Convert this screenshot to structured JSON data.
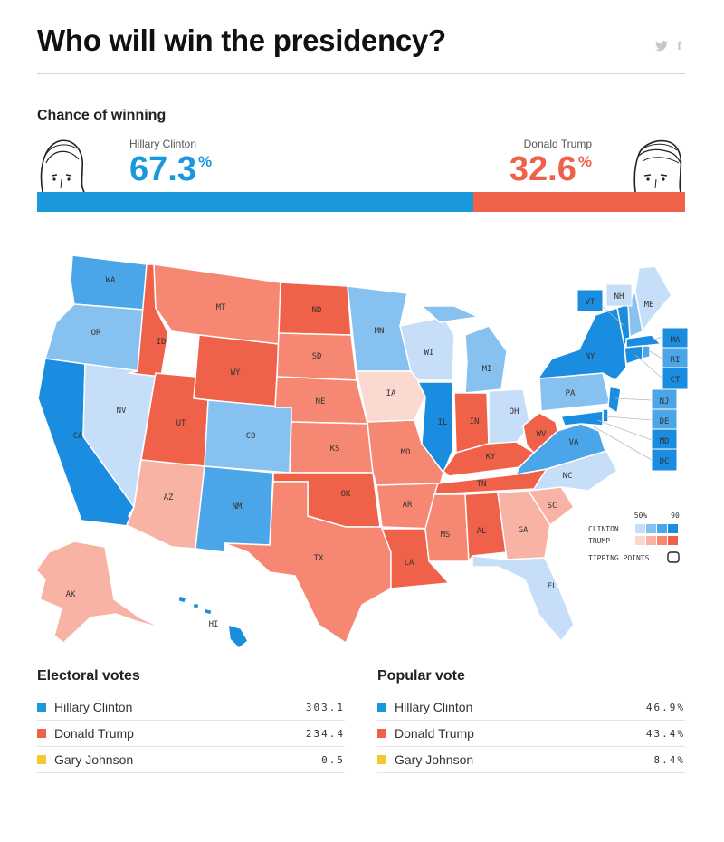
{
  "header": {
    "title": "Who will win the presidency?",
    "share_twitter": "twitter-icon",
    "share_facebook": "f"
  },
  "chance": {
    "heading": "Chance of winning",
    "clinton": {
      "name": "Hillary Clinton",
      "pct": "67.3",
      "unit": "%",
      "value": 67.3,
      "color": "#1a98dc"
    },
    "trump": {
      "name": "Donald Trump",
      "pct": "32.6",
      "unit": "%",
      "value": 32.6,
      "color": "#ef6148"
    }
  },
  "map": {
    "states": {
      "WA": "WA",
      "OR": "OR",
      "CA": "CA",
      "NV": "NV",
      "ID": "ID",
      "MT": "MT",
      "WY": "WY",
      "UT": "UT",
      "AZ": "AZ",
      "CO": "CO",
      "NM": "NM",
      "ND": "ND",
      "SD": "SD",
      "NE": "NE",
      "KS": "KS",
      "OK": "OK",
      "TX": "TX",
      "MN": "MN",
      "IA": "IA",
      "MO": "MO",
      "AR": "AR",
      "LA": "LA",
      "WI": "WI",
      "IL": "IL",
      "MI": "MI",
      "IN": "IN",
      "OH": "OH",
      "KY": "KY",
      "TN": "TN",
      "MS": "MS",
      "AL": "AL",
      "GA": "GA",
      "FL": "FL",
      "SC": "SC",
      "NC": "NC",
      "VA": "VA",
      "WV": "WV",
      "PA": "PA",
      "NY": "NY",
      "ME": "ME",
      "AK": "AK",
      "HI": "HI"
    },
    "small_states": {
      "VT": "VT",
      "NH": "NH",
      "MA": "MA",
      "RI": "RI",
      "CT": "CT",
      "NJ": "NJ",
      "DE": "DE",
      "MD": "MD",
      "DC": "DC"
    },
    "legend": {
      "p50": "50%",
      "p90": "90",
      "clinton": "CLINTON",
      "trump": "TRUMP",
      "tipping": "TIPPING POINTS"
    },
    "colors": {
      "d90": "#1a8de0",
      "d75": "#4aa6e8",
      "d60": "#86c1f0",
      "d50": "#c6def7",
      "r50": "#fbd9d1",
      "r60": "#f9b3a4",
      "r75": "#f68873",
      "r90": "#ef6148"
    }
  },
  "electoral": {
    "heading": "Electoral votes",
    "rows": [
      {
        "name": "Hillary Clinton",
        "value": "303.1",
        "color": "#1a98dc"
      },
      {
        "name": "Donald Trump",
        "value": "234.4",
        "color": "#ef6148"
      },
      {
        "name": "Gary Johnson",
        "value": "0.5",
        "color": "#f2c932"
      }
    ]
  },
  "popular": {
    "heading": "Popular vote",
    "rows": [
      {
        "name": "Hillary Clinton",
        "value": "46.9%",
        "color": "#1a98dc"
      },
      {
        "name": "Donald Trump",
        "value": "43.4%",
        "color": "#ef6148"
      },
      {
        "name": "Gary Johnson",
        "value": "8.4%",
        "color": "#f2c932"
      }
    ]
  }
}
